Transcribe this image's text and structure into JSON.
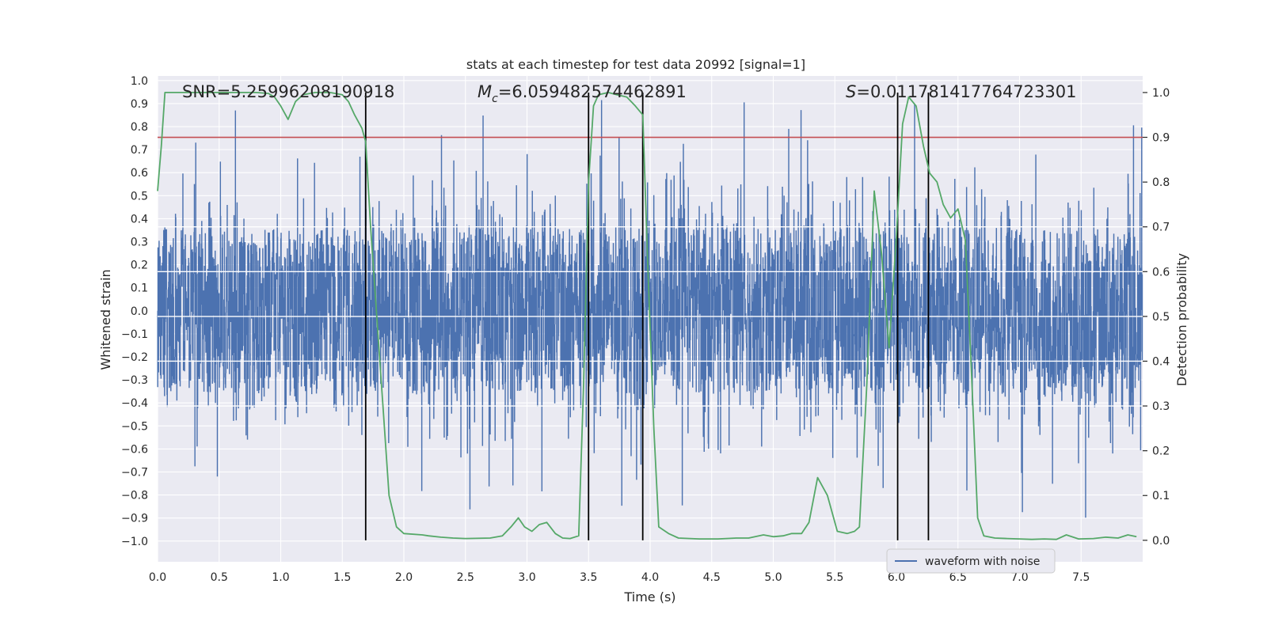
{
  "chart_data": {
    "type": "line",
    "title": "stats at each timestep for test data 20992 [signal=1]",
    "xlabel": "Time (s)",
    "ylabel": "Whitened strain",
    "y2label": "Detection probability",
    "xlim": [
      0,
      8
    ],
    "ylim": [
      -1.09,
      1.02
    ],
    "y2lim": [
      -0.048,
      1.037
    ],
    "xticks": [
      0.0,
      0.5,
      1.0,
      1.5,
      2.0,
      2.5,
      3.0,
      3.5,
      4.0,
      4.5,
      5.0,
      5.5,
      6.0,
      6.5,
      7.0,
      7.5
    ],
    "xtick_labels": [
      "0.0",
      "0.5",
      "1.0",
      "1.5",
      "2.0",
      "2.5",
      "3.0",
      "3.5",
      "4.0",
      "4.5",
      "5.0",
      "5.5",
      "6.0",
      "6.5",
      "7.0",
      "7.5"
    ],
    "yticks": [
      1.0,
      0.9,
      0.8,
      0.7,
      0.6,
      0.5,
      0.4,
      0.3,
      0.2,
      0.1,
      0.0,
      -0.1,
      -0.2,
      -0.3,
      -0.4,
      -0.5,
      -0.6,
      -0.7,
      -0.8,
      -0.9,
      -1.0
    ],
    "ytick_labels": [
      "1.0",
      "0.9",
      "0.8",
      "0.7",
      "0.6",
      "0.5",
      "0.4",
      "0.3",
      "0.2",
      "0.1",
      "0.0",
      "−0.1",
      "−0.2",
      "−0.3",
      "−0.4",
      "−0.5",
      "−0.6",
      "−0.7",
      "−0.8",
      "−0.9",
      "−1.0"
    ],
    "y2ticks": [
      1.0,
      0.9,
      0.8,
      0.7,
      0.6,
      0.5,
      0.4,
      0.3,
      0.2,
      0.1,
      0.0
    ],
    "y2tick_labels": [
      "1.0",
      "0.9",
      "0.8",
      "0.7",
      "0.6",
      "0.5",
      "0.4",
      "0.3",
      "0.2",
      "0.1",
      "0.0"
    ],
    "annotations": {
      "snr": "SNR=5.25996208190918",
      "mc_value": "=6.059482574462891",
      "s_value": "=0.011781417764723301"
    },
    "threshold": 0.9,
    "vertical_lines": [
      1.69,
      3.5,
      3.94,
      6.01,
      6.26
    ],
    "legend": "waveform with noise",
    "legend_position": "lower-right",
    "colors": {
      "waveform": "#4c72b0",
      "probability": "#55a868",
      "threshold": "#c44e52",
      "markers": "#000000",
      "axes_bg": "#eaeaf2",
      "grid": "#ffffff"
    },
    "series": [
      {
        "name": "waveform with noise",
        "axis": "left",
        "description": "dense whitened strain, core amplitude about ±0.35, spikes reaching about ±0.9 to −1.0"
      },
      {
        "name": "detection probability",
        "axis": "right",
        "x": [
          0.0,
          0.03,
          0.06,
          0.12,
          0.2,
          0.3,
          0.4,
          0.5,
          0.6,
          0.7,
          0.8,
          0.9,
          0.95,
          1.0,
          1.06,
          1.12,
          1.18,
          1.28,
          1.4,
          1.5,
          1.55,
          1.6,
          1.66,
          1.69,
          1.73,
          1.78,
          1.83,
          1.88,
          1.94,
          2.0,
          2.15,
          2.2,
          2.3,
          2.4,
          2.5,
          2.7,
          2.8,
          2.87,
          2.93,
          2.98,
          3.04,
          3.1,
          3.16,
          3.23,
          3.29,
          3.35,
          3.42,
          3.46,
          3.5,
          3.54,
          3.58,
          3.66,
          3.73,
          3.81,
          3.88,
          3.94,
          3.98,
          4.03,
          4.07,
          4.15,
          4.23,
          4.4,
          4.55,
          4.7,
          4.8,
          4.92,
          5.0,
          5.08,
          5.15,
          5.23,
          5.29,
          5.36,
          5.44,
          5.52,
          5.6,
          5.66,
          5.7,
          5.76,
          5.82,
          5.88,
          5.94,
          6.0,
          6.05,
          6.1,
          6.16,
          6.22,
          6.27,
          6.33,
          6.38,
          6.44,
          6.5,
          6.56,
          6.61,
          6.66,
          6.71,
          6.8,
          6.9,
          7.0,
          7.1,
          7.2,
          7.3,
          7.38,
          7.48,
          7.6,
          7.7,
          7.8,
          7.88,
          7.95
        ],
        "values": [
          0.78,
          0.88,
          1.0,
          1.0,
          1.0,
          1.0,
          1.0,
          1.0,
          1.0,
          1.0,
          1.0,
          0.998,
          0.99,
          0.97,
          0.94,
          0.98,
          0.995,
          1.0,
          1.0,
          0.995,
          0.98,
          0.95,
          0.92,
          0.89,
          0.7,
          0.5,
          0.3,
          0.1,
          0.03,
          0.015,
          0.012,
          0.01,
          0.007,
          0.005,
          0.004,
          0.005,
          0.01,
          0.03,
          0.05,
          0.03,
          0.02,
          0.035,
          0.04,
          0.015,
          0.005,
          0.004,
          0.01,
          0.35,
          0.8,
          0.97,
          0.995,
          1.0,
          0.995,
          0.99,
          0.97,
          0.95,
          0.62,
          0.25,
          0.03,
          0.015,
          0.005,
          0.003,
          0.003,
          0.005,
          0.005,
          0.012,
          0.008,
          0.01,
          0.015,
          0.015,
          0.04,
          0.14,
          0.1,
          0.02,
          0.015,
          0.02,
          0.03,
          0.35,
          0.78,
          0.64,
          0.43,
          0.68,
          0.93,
          0.99,
          0.97,
          0.88,
          0.82,
          0.8,
          0.75,
          0.72,
          0.74,
          0.67,
          0.37,
          0.05,
          0.01,
          0.005,
          0.004,
          0.003,
          0.002,
          0.003,
          0.002,
          0.012,
          0.003,
          0.004,
          0.007,
          0.005,
          0.012,
          0.008
        ]
      }
    ]
  }
}
